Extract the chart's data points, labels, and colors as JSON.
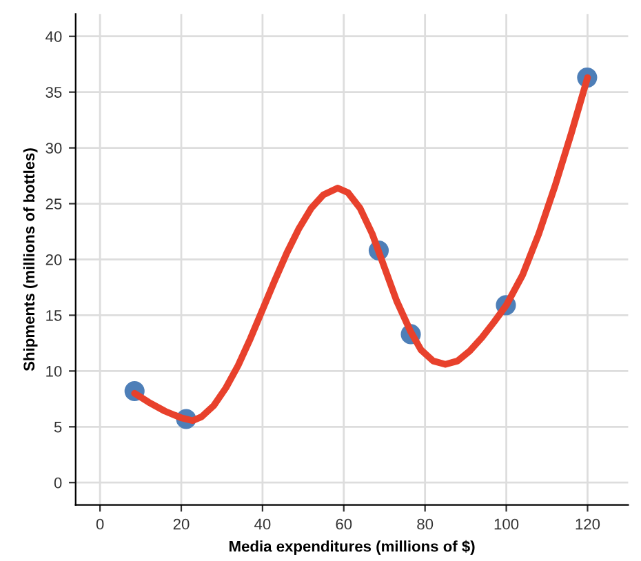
{
  "chart_data": {
    "type": "line",
    "xlabel": "Media expenditures (millions of $)",
    "ylabel": "Shipments (millions of bottles)",
    "xlim": [
      -6,
      130
    ],
    "ylim": [
      -2,
      42
    ],
    "xticks": [
      0,
      20,
      40,
      60,
      80,
      100,
      120
    ],
    "yticks": [
      0,
      5,
      10,
      15,
      20,
      25,
      30,
      35,
      40
    ],
    "grid": true,
    "series": [
      {
        "color": "#e8412c",
        "x": [
          8.5,
          12,
          16,
          20,
          22.8,
          25,
          28,
          31,
          34,
          37,
          40,
          43,
          46,
          49,
          52,
          55,
          58.5,
          61,
          64,
          67,
          70,
          73,
          76.5,
          79,
          82,
          85,
          88,
          91,
          94,
          97,
          100,
          104,
          108,
          112,
          116,
          120
        ],
        "values": [
          8.0,
          7.2,
          6.4,
          5.8,
          5.55,
          5.9,
          6.9,
          8.5,
          10.5,
          12.9,
          15.5,
          18.1,
          20.6,
          22.8,
          24.6,
          25.8,
          26.4,
          26.0,
          24.6,
          22.3,
          19.3,
          16.3,
          13.5,
          11.9,
          10.9,
          10.6,
          10.9,
          11.8,
          13.0,
          14.4,
          15.9,
          18.6,
          22.3,
          26.6,
          31.3,
          36.3
        ]
      },
      {
        "type": "scatter",
        "color": "#4e7fb8",
        "marker": "circle",
        "x": [
          8.5,
          21.2,
          68.6,
          76.5,
          99.9,
          119.9
        ],
        "values": [
          8.2,
          5.7,
          20.8,
          13.3,
          15.9,
          36.3
        ]
      }
    ]
  }
}
